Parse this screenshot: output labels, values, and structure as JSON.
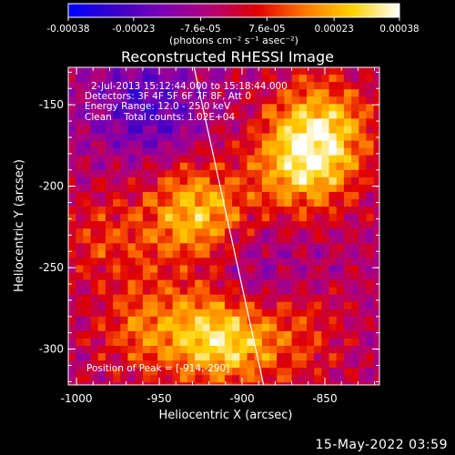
{
  "chart_data": {
    "type": "heatmap",
    "title": "Reconstructed RHESSI Image",
    "xlabel": "Heliocentric X (arcsec)",
    "ylabel": "Heliocentric Y (arcsec)",
    "xlim": [
      -1005,
      -817
    ],
    "ylim": [
      -322,
      -127
    ],
    "x_ticks": [
      -1000,
      -950,
      -900,
      -850
    ],
    "x_tick_labels": [
      "-1000",
      "-950",
      "-900",
      "-850"
    ],
    "y_ticks": [
      -150,
      -200,
      -250,
      -300
    ],
    "y_tick_labels": [
      "-150",
      "-200",
      "-250",
      "-300"
    ],
    "colorbar": {
      "range": [
        -0.00038,
        0.00038
      ],
      "ticks": [
        -0.00038,
        -0.00023,
        -7.6e-05,
        7.6e-05,
        0.00023,
        0.00038
      ],
      "tick_labels": [
        "-0.00038",
        "-0.00023",
        "-7.6e-05",
        "7.6e-05",
        "0.00023",
        "0.00038"
      ],
      "units": "(photons cm⁻² s⁻¹ asec⁻²)",
      "colormap": [
        "#0000ff",
        "#3a00c8",
        "#7d00b4",
        "#b40078",
        "#e00000",
        "#ff7800",
        "#ffd200",
        "#ffffff"
      ]
    },
    "annotations": {
      "time_range": "2-Jul-2013 15:12:44.000 to 15:18:44.000",
      "detectors": "Detectors: 3F 4F 5F 6F 7F 8F, Att 0",
      "energy_range": "Energy Range: 12.0 - 25.0 keV",
      "clean_counts": "Clean    Total counts: 1.02E+04",
      "peak": "Position of Peak = [-914,-290]"
    },
    "limb_line": {
      "x": [
        -929,
        -887
      ],
      "y": [
        -127,
        -322
      ]
    },
    "peak_position": [
      -914,
      -290
    ],
    "intensity_regions": [
      {
        "x": -915,
        "y": -290,
        "value": 0.00034
      },
      {
        "x": -930,
        "y": -215,
        "value": 0.0003
      },
      {
        "x": -865,
        "y": -185,
        "value": 0.00029
      },
      {
        "x": -855,
        "y": -160,
        "value": 0.00025
      },
      {
        "x": -960,
        "y": -285,
        "value": 0.00018
      },
      {
        "x": -985,
        "y": -230,
        "value": 0.00012
      },
      {
        "x": -870,
        "y": -290,
        "value": 0.00014
      },
      {
        "x": -900,
        "y": -255,
        "value": -0.00012
      },
      {
        "x": -960,
        "y": -150,
        "value": -0.00018
      }
    ]
  },
  "footer": {
    "date": "15-May-2022 03:59"
  }
}
